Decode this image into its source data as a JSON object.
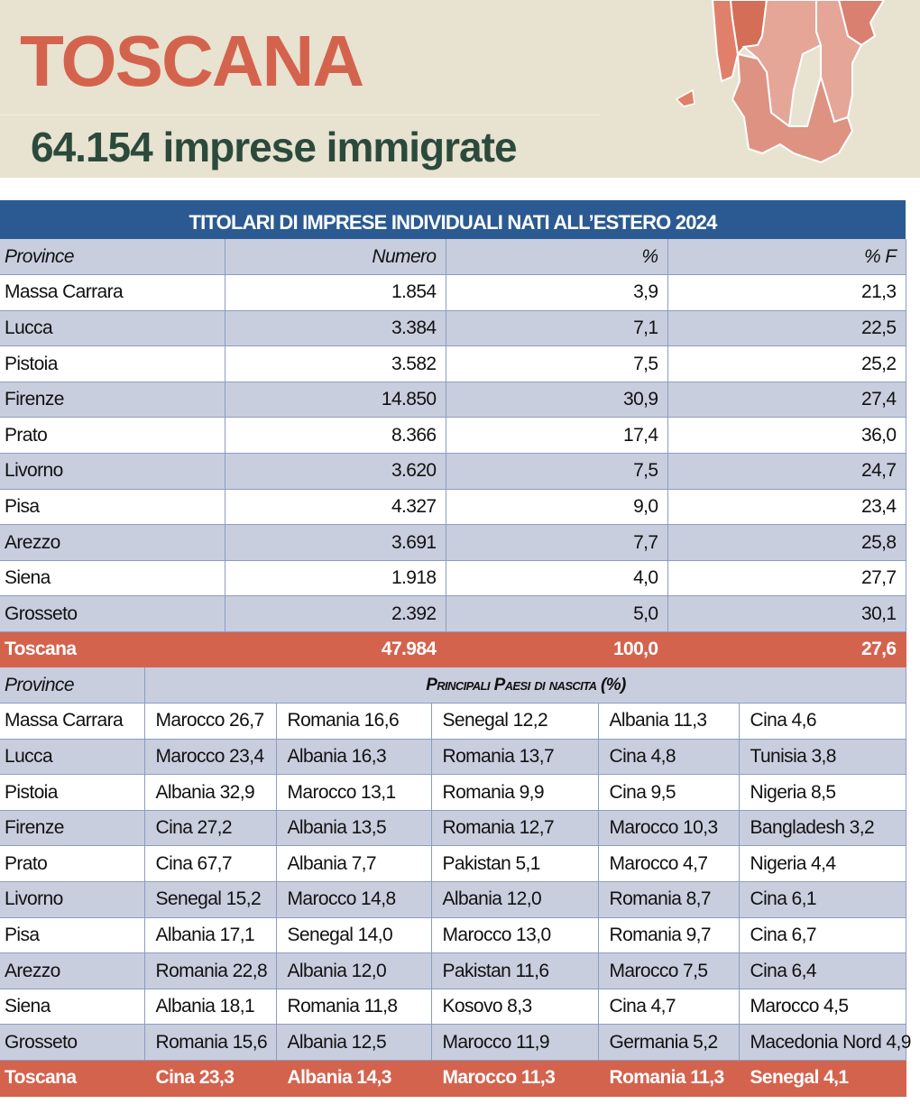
{
  "header": {
    "title": "TOSCANA",
    "subtitle": "64.154 imprese immigrate"
  },
  "table1": {
    "title": "TITOLARI DI IMPRESE INDIVIDUALI NATI ALL’ESTERO 2024",
    "columns": [
      "Province",
      "Numero",
      "%",
      "% F"
    ],
    "rows": [
      [
        "Massa Carrara",
        "1.854",
        "3,9",
        "21,3"
      ],
      [
        "Lucca",
        "3.384",
        "7,1",
        "22,5"
      ],
      [
        "Pistoia",
        "3.582",
        "7,5",
        "25,2"
      ],
      [
        "Firenze",
        "14.850",
        "30,9",
        "27,4"
      ],
      [
        "Prato",
        "8.366",
        "17,4",
        "36,0"
      ],
      [
        "Livorno",
        "3.620",
        "7,5",
        "24,7"
      ],
      [
        "Pisa",
        "4.327",
        "9,0",
        "23,4"
      ],
      [
        "Arezzo",
        "3.691",
        "7,7",
        "25,8"
      ],
      [
        "Siena",
        "1.918",
        "4,0",
        "27,7"
      ],
      [
        "Grosseto",
        "2.392",
        "5,0",
        "30,1"
      ]
    ],
    "total": [
      "Toscana",
      "47.984",
      "100,0",
      "27,6"
    ]
  },
  "table2": {
    "columns": [
      "Province",
      "Principali Paesi di nascita (%)"
    ],
    "rows": [
      [
        "Massa Carrara",
        "Marocco 26,7",
        "Romania 16,6",
        "Senegal 12,2",
        "Albania 11,3",
        "Cina 4,6"
      ],
      [
        "Lucca",
        "Marocco 23,4",
        "Albania 16,3",
        "Romania 13,7",
        "Cina 4,8",
        "Tunisia 3,8"
      ],
      [
        "Pistoia",
        "Albania 32,9",
        "Marocco 13,1",
        "Romania 9,9",
        "Cina 9,5",
        "Nigeria 8,5"
      ],
      [
        "Firenze",
        "Cina 27,2",
        "Albania 13,5",
        "Romania 12,7",
        "Marocco 10,3",
        "Bangladesh 3,2"
      ],
      [
        "Prato",
        "Cina 67,7",
        "Albania 7,7",
        "Pakistan 5,1",
        "Marocco 4,7",
        "Nigeria 4,4"
      ],
      [
        "Livorno",
        "Senegal 15,2",
        "Marocco 14,8",
        "Albania 12,0",
        "Romania 8,7",
        "Cina 6,1"
      ],
      [
        "Pisa",
        "Albania 17,1",
        "Senegal 14,0",
        "Marocco 13,0",
        "Romania 9,7",
        "Cina 6,7"
      ],
      [
        "Arezzo",
        "Romania 22,8",
        "Albania 12,0",
        "Pakistan 11,6",
        "Marocco 7,5",
        "Cina 6,4"
      ],
      [
        "Siena",
        "Albania 18,1",
        "Romania 11,8",
        "Kosovo 8,3",
        "Cina 4,7",
        "Marocco 4,5"
      ],
      [
        "Grosseto",
        "Romania 15,6",
        "Albania 12,5",
        "Marocco 11,9",
        "Germania 5,2",
        "Macedonia Nord 4,9"
      ]
    ],
    "total": [
      "Toscana",
      "Cina 23,3",
      "Albania 14,3",
      "Marocco 11,3",
      "Romania 11,3",
      "Senegal 4,1"
    ]
  },
  "colors": {
    "accent": "#d4634e",
    "header_blue": "#2b5a92",
    "row_alt": "#c9cede",
    "beige": "#e8e2d0"
  }
}
